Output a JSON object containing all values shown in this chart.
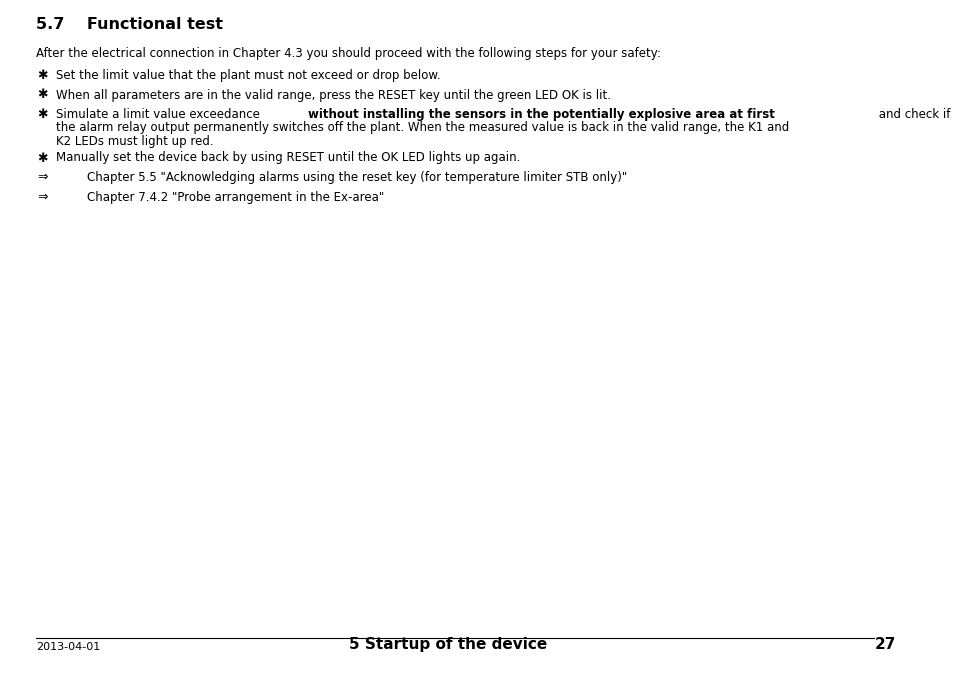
{
  "title": "5.7    Functional test",
  "intro": "After the electrical connection in Chapter 4.3 you should proceed with the following steps for your safety:",
  "bullet_items": [
    {
      "symbol": "✱",
      "text_parts": [
        {
          "text": "Set the limit value that the plant must not exceed or drop below.",
          "bold": false
        }
      ]
    },
    {
      "symbol": "✱",
      "text_parts": [
        {
          "text": "When all parameters are in the valid range, press the RESET key until the green LED OK is lit.",
          "bold": false
        }
      ]
    },
    {
      "symbol": "✱",
      "text_parts": [
        {
          "text": "Simulate a limit value exceedance ",
          "bold": false
        },
        {
          "text": "without installing the sensors in the potentially explosive area at first",
          "bold": true
        },
        {
          "text": " and check if\nthe alarm relay output permanently switches off the plant. When the measured value is back in the valid range, the K1 and\nK2 LEDs must light up red.",
          "bold": false
        }
      ]
    },
    {
      "symbol": "✱",
      "text_parts": [
        {
          "text": "Manually set the device back by using RESET until the OK LED lights up again.",
          "bold": false
        }
      ]
    }
  ],
  "arrow_items": [
    "Chapter 5.5 \"Acknowledging alarms using the reset key (for temperature limiter STB only)\"",
    "Chapter 7.4.2 \"Probe arrangement in the Ex-area\""
  ],
  "footer_left": "2013-04-01",
  "footer_center": "5 Startup of the device",
  "footer_page": "27",
  "bg_color": "#ffffff",
  "text_color": "#000000",
  "font_family": "DejaVu Sans"
}
